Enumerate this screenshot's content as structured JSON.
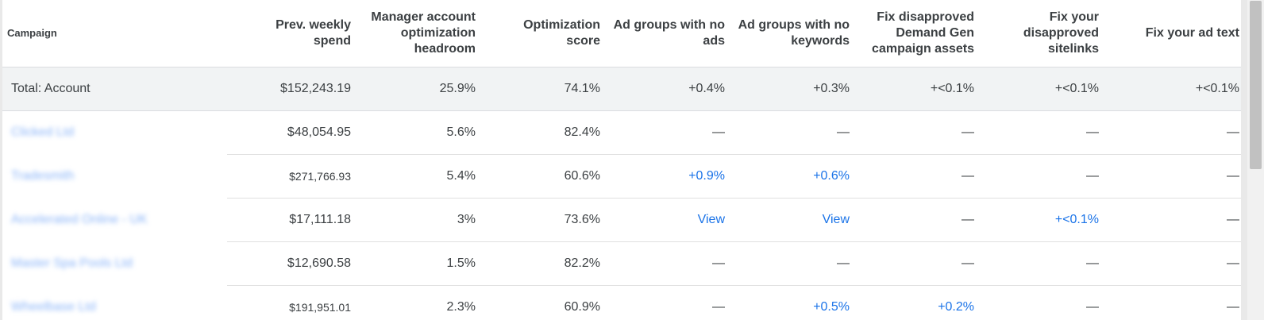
{
  "header": {
    "campaign": "Campaign",
    "prev_weekly_spend_line1": "Prev. weekly",
    "prev_weekly_spend_line2": "spend",
    "headroom_line1": "Manager account",
    "headroom_line2": "optimization",
    "headroom_line3": "headroom",
    "opt_score_line1": "Optimization",
    "opt_score_line2": "score",
    "no_ads_line1": "Ad groups with no",
    "no_ads_line2": "ads",
    "no_keywords_line1": "Ad groups with no",
    "no_keywords_line2": "keywords",
    "demand_gen_line1": "Fix disapproved",
    "demand_gen_line2": "Demand Gen",
    "demand_gen_line3": "campaign assets",
    "sitelinks_line1": "Fix your",
    "sitelinks_line2": "disapproved",
    "sitelinks_line3": "sitelinks",
    "ad_text": "Fix your ad text"
  },
  "total": {
    "campaign": "Total: Account",
    "spend": "$152,243.19",
    "headroom": "25.9%",
    "score": "74.1%",
    "no_ads": "+0.4%",
    "no_keywords": "+0.3%",
    "demand_gen": "+<0.1%",
    "sitelinks": "+<0.1%",
    "ad_text": "+<0.1%"
  },
  "rows": [
    {
      "campaign": "Clicked Ltd",
      "spend": "$48,054.95",
      "headroom": "5.6%",
      "score": "82.4%",
      "no_ads": "—",
      "no_keywords": "—",
      "demand_gen": "—",
      "sitelinks": "—",
      "ad_text": "—"
    },
    {
      "campaign": "Tradesmith",
      "spend": "$271,766.93",
      "headroom": "5.4%",
      "score": "60.6%",
      "no_ads": "+0.9%",
      "no_keywords": "+0.6%",
      "demand_gen": "—",
      "sitelinks": "—",
      "ad_text": "—"
    },
    {
      "campaign": "Accelerated Online - UK",
      "spend": "$17,111.18",
      "headroom": "3%",
      "score": "73.6%",
      "no_ads": "View",
      "no_keywords": "View",
      "demand_gen": "—",
      "sitelinks": "+<0.1%",
      "ad_text": "—"
    },
    {
      "campaign": "Master Spa Pools Ltd",
      "spend": "$12,690.58",
      "headroom": "1.5%",
      "score": "82.2%",
      "no_ads": "—",
      "no_keywords": "—",
      "demand_gen": "—",
      "sitelinks": "—",
      "ad_text": "—"
    },
    {
      "campaign": "Wheelbase Ltd",
      "spend": "$191,951.01",
      "headroom": "2.3%",
      "score": "60.9%",
      "no_ads": "—",
      "no_keywords": "+0.5%",
      "demand_gen": "+0.2%",
      "sitelinks": "—",
      "ad_text": "—"
    }
  ],
  "colors": {
    "link": "#1a73e8",
    "total_row_bg": "#f1f3f4",
    "text": "#3c4043"
  }
}
